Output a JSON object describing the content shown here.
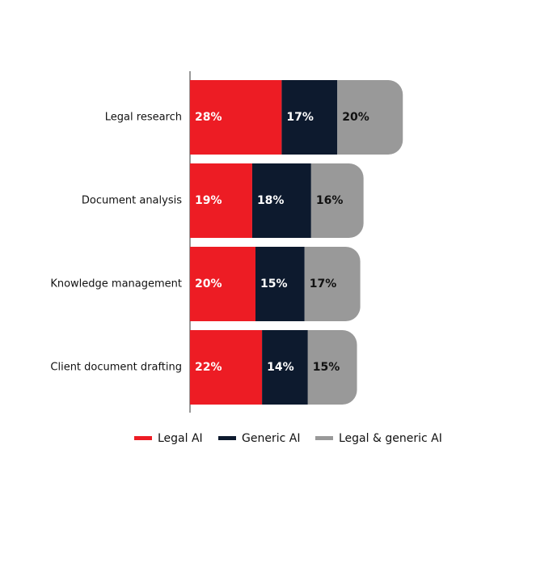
{
  "chart_data": {
    "type": "stacked-bar-horizontal",
    "categories": [
      "Legal research",
      "Document analysis",
      "Knowledge management",
      "Client document drafting"
    ],
    "series": [
      {
        "name": "Legal AI",
        "color": "#ed1c24",
        "values": [
          28,
          19,
          20,
          22
        ],
        "value_labels": [
          "28%",
          "19%",
          "20%",
          "22%"
        ]
      },
      {
        "name": "Generic AI",
        "color": "#0d1a2e",
        "values": [
          17,
          18,
          15,
          14
        ],
        "value_labels": [
          "17%",
          "18%",
          "15%",
          "14%"
        ]
      },
      {
        "name": "Legal & generic AI",
        "color": "#999999",
        "values": [
          20,
          16,
          17,
          15
        ],
        "value_labels": [
          "20%",
          "16%",
          "17%",
          "15%"
        ]
      }
    ]
  }
}
